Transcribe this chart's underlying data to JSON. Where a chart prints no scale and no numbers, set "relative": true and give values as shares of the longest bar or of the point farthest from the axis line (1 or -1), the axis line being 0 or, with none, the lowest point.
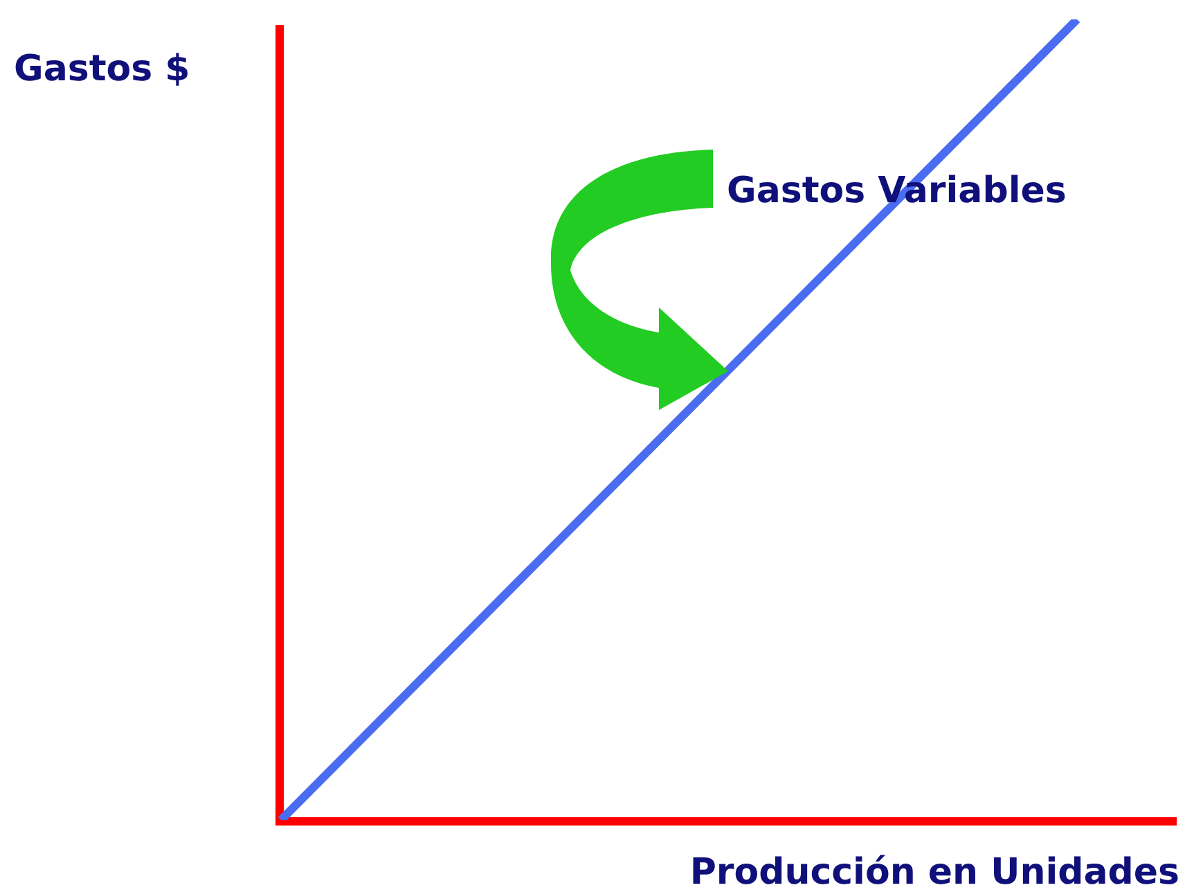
{
  "chart_data": {
    "type": "line",
    "relative": true,
    "xlabel": "Producción en Unidades",
    "ylabel": "Gastos $",
    "categories": [
      null,
      null
    ],
    "series": [
      {
        "color": "#4a6cf0",
        "values": [
          0,
          1
        ]
      }
    ],
    "annotations": [
      "Gastos Variables"
    ]
  }
}
